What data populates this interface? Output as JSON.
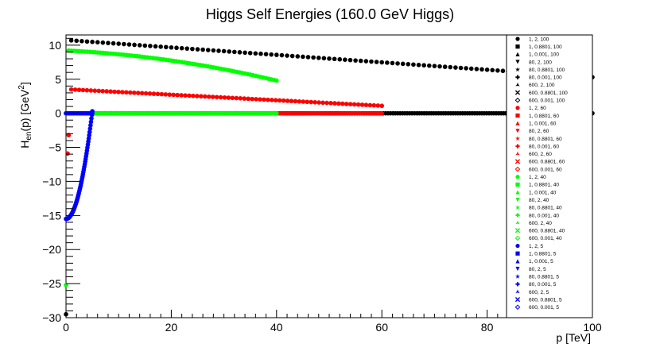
{
  "chart_data": {
    "type": "scatter",
    "title": "Higgs Self Energies (160.0 GeV Higgs)",
    "xlabel": "p [TeV]",
    "ylabel_main": "H",
    "ylabel_sub": "en",
    "ylabel_mid": "(p) [GeV",
    "ylabel_sup": "2",
    "ylabel_end": "]",
    "xlim": [
      0,
      100
    ],
    "ylim": [
      -30,
      11.5
    ],
    "x_ticks": [
      0,
      20,
      40,
      60,
      80,
      100
    ],
    "y_ticks": [
      10,
      5,
      0,
      -5,
      -10,
      -15,
      -20,
      -25,
      -30
    ],
    "legend_position": "right",
    "colors": {
      "black": "#000000",
      "red": "#ff0000",
      "green": "#00ff00",
      "blue": "#0000ff"
    },
    "legend": [
      {
        "label": "1, 2, 100",
        "color": "black",
        "marker": "circle"
      },
      {
        "label": "1, 0.8801, 100",
        "color": "black",
        "marker": "square"
      },
      {
        "label": "1, 0.001, 100",
        "color": "black",
        "marker": "triangle-up"
      },
      {
        "label": "80, 2, 100",
        "color": "black",
        "marker": "triangle-down"
      },
      {
        "label": "80, 0.8801, 100",
        "color": "black",
        "marker": "star"
      },
      {
        "label": "80, 0.001, 100",
        "color": "black",
        "marker": "cross"
      },
      {
        "label": "600, 2, 100",
        "color": "black",
        "marker": "star3"
      },
      {
        "label": "600, 0.8801, 100",
        "color": "black",
        "marker": "x"
      },
      {
        "label": "600, 0.001, 100",
        "color": "black",
        "marker": "open-diamond"
      },
      {
        "label": "1, 2, 60",
        "color": "red",
        "marker": "circle"
      },
      {
        "label": "1, 0.8801, 60",
        "color": "red",
        "marker": "square"
      },
      {
        "label": "1, 0.001, 60",
        "color": "red",
        "marker": "triangle-up"
      },
      {
        "label": "80, 2, 60",
        "color": "red",
        "marker": "triangle-down"
      },
      {
        "label": "80, 0.8801, 60",
        "color": "red",
        "marker": "star"
      },
      {
        "label": "80, 0.001, 60",
        "color": "red",
        "marker": "cross"
      },
      {
        "label": "600, 2, 60",
        "color": "red",
        "marker": "star3"
      },
      {
        "label": "600, 0.8801, 60",
        "color": "red",
        "marker": "x"
      },
      {
        "label": "600, 0.001, 60",
        "color": "red",
        "marker": "open-diamond"
      },
      {
        "label": "1, 2, 40",
        "color": "green",
        "marker": "circle"
      },
      {
        "label": "1, 0.8801, 40",
        "color": "green",
        "marker": "square"
      },
      {
        "label": "1, 0.001, 40",
        "color": "green",
        "marker": "triangle-up"
      },
      {
        "label": "80, 2, 40",
        "color": "green",
        "marker": "triangle-down"
      },
      {
        "label": "80, 0.8801, 40",
        "color": "green",
        "marker": "star"
      },
      {
        "label": "80, 0.001, 40",
        "color": "green",
        "marker": "cross"
      },
      {
        "label": "600, 2, 40",
        "color": "green",
        "marker": "star3"
      },
      {
        "label": "600, 0.8801, 40",
        "color": "green",
        "marker": "x"
      },
      {
        "label": "600, 0.001, 40",
        "color": "green",
        "marker": "open-diamond"
      },
      {
        "label": "1, 2, 5",
        "color": "blue",
        "marker": "circle"
      },
      {
        "label": "1, 0.8801, 5",
        "color": "blue",
        "marker": "square"
      },
      {
        "label": "1, 0.001, 5",
        "color": "blue",
        "marker": "triangle-up"
      },
      {
        "label": "80, 2, 5",
        "color": "blue",
        "marker": "triangle-down"
      },
      {
        "label": "80, 0.8801, 5",
        "color": "blue",
        "marker": "star"
      },
      {
        "label": "80, 0.001, 5",
        "color": "blue",
        "marker": "cross"
      },
      {
        "label": "600, 2, 5",
        "color": "blue",
        "marker": "star3"
      },
      {
        "label": "600, 0.8801, 5",
        "color": "blue",
        "marker": "x"
      },
      {
        "label": "600, 0.001, 5",
        "color": "blue",
        "marker": "open-diamond"
      }
    ],
    "series": [
      {
        "color": "black",
        "curve": "linear",
        "x_range": [
          1,
          100
        ],
        "y_at_start": 10.7,
        "y_at_end": 5.3,
        "n_points": 100
      },
      {
        "color": "red",
        "curve": "linear",
        "x_range": [
          1,
          60
        ],
        "y_at_start": 3.5,
        "y_at_end": 1.1,
        "n_points": 80
      },
      {
        "color": "green",
        "curve": "quadratic",
        "x_range": [
          0.5,
          40
        ],
        "y_at_start": 9.2,
        "y_at_end": 4.8,
        "n_points": 80
      },
      {
        "color": "black",
        "curve": "linear",
        "x_range": [
          0,
          100
        ],
        "y_at_start": 0,
        "y_at_end": 0,
        "n_points": 220
      },
      {
        "color": "red",
        "curve": "linear",
        "x_range": [
          0,
          60
        ],
        "y_at_start": 0,
        "y_at_end": 0,
        "n_points": 140
      },
      {
        "color": "green",
        "curve": "linear",
        "x_range": [
          0,
          40
        ],
        "y_at_start": 0,
        "y_at_end": 0,
        "n_points": 100
      },
      {
        "color": "blue",
        "curve": "linear",
        "x_range": [
          0,
          5
        ],
        "y_at_start": 0,
        "y_at_end": 0,
        "n_points": 15
      },
      {
        "color": "blue",
        "curve": "quadratic-rise",
        "x_range": [
          0,
          5
        ],
        "y_at_start": -15.5,
        "y_at_end": 0.3,
        "n_points": 60
      }
    ],
    "isolated_points": [
      {
        "x": 0,
        "y": -29.5,
        "color": "black"
      },
      {
        "x": 0.5,
        "y": -3.2,
        "color": "red"
      },
      {
        "x": 0.3,
        "y": -5.9,
        "color": "red"
      },
      {
        "x": 0,
        "y": -25.2,
        "color": "green"
      }
    ]
  }
}
